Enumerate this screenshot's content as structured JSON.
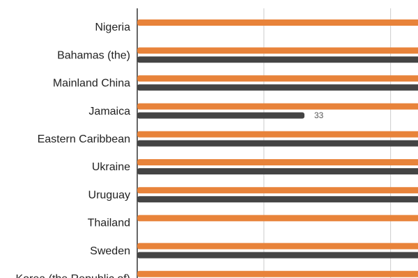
{
  "chart_data": {
    "type": "hbar",
    "categories": [
      "Nigeria",
      "Bahamas (the)",
      "Mainland China",
      "Jamaica",
      "Eastern Caribbean",
      "Ukraine",
      "Uruguay",
      "Thailand",
      "Sweden",
      "Korea (the Republic of)"
    ],
    "series": [
      {
        "color": "#e8833a",
        "values": [
          60,
          60,
          60,
          60,
          60,
          60,
          60,
          60,
          60,
          60
        ]
      },
      {
        "color": "#444444",
        "values": [
          null,
          58,
          58,
          33,
          58,
          58,
          58,
          null,
          58,
          null
        ]
      }
    ],
    "xlim": [
      0,
      55
    ],
    "xticks": [
      0,
      25,
      50
    ],
    "grid": true
  }
}
